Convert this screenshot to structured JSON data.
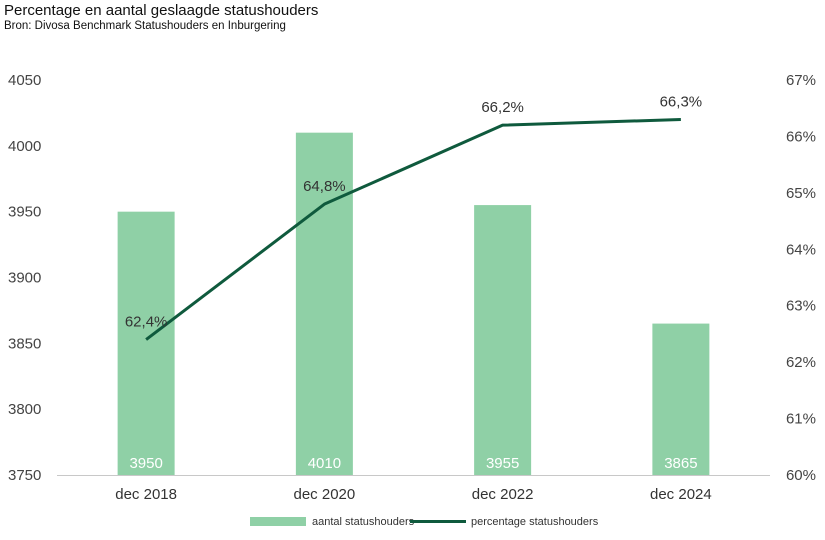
{
  "chart_data": {
    "type": "bar",
    "title": "Percentage en aantal geslaagde statushouders",
    "subtitle": "Bron: Divosa Benchmark Statushouders en Inburgering",
    "categories": [
      "dec 2018",
      "dec 2020",
      "dec 2022",
      "dec 2024"
    ],
    "series": [
      {
        "name": "aantal statushouders",
        "type": "bar",
        "axis": "left",
        "color": "#8fd0a6",
        "values": [
          3950,
          4010,
          3955,
          3865
        ],
        "labels": [
          "3950",
          "4010",
          "3955",
          "3865"
        ]
      },
      {
        "name": "percentage statushouders",
        "type": "line",
        "axis": "right",
        "color": "#0f5a3d",
        "values": [
          62.4,
          64.8,
          66.2,
          66.3
        ],
        "labels": [
          "62,4%",
          "64,8%",
          "66,2%",
          "66,3%"
        ]
      }
    ],
    "y_left": {
      "min": 3750,
      "max": 4050,
      "ticks": [
        "3750",
        "3800",
        "3850",
        "3900",
        "3950",
        "4000",
        "4050"
      ]
    },
    "y_right": {
      "min": 60,
      "max": 67,
      "ticks": [
        "60%",
        "61%",
        "62%",
        "63%",
        "64%",
        "65%",
        "66%",
        "67%"
      ]
    },
    "grid": false,
    "legend": "bottom"
  }
}
